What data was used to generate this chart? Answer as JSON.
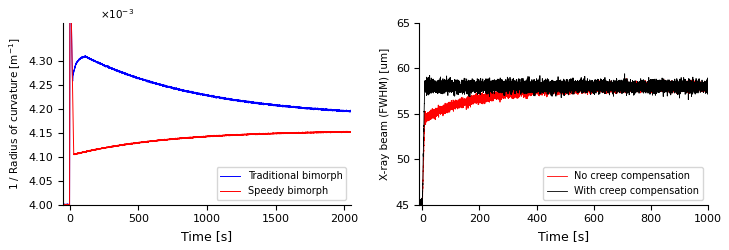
{
  "plot1": {
    "xlabel": "Time [s]",
    "ylabel": "1 / Radius of curvature [m$^{-1}$]",
    "xlim": [
      -50,
      2050
    ],
    "ylim": [
      0.004,
      0.00438
    ],
    "yticks": [
      0.004,
      0.00405,
      0.0041,
      0.00415,
      0.0042,
      0.00425,
      0.0043
    ],
    "xticks": [
      0,
      500,
      1000,
      1500,
      2000
    ],
    "legend": [
      "Traditional bimorph",
      "Speedy bimorph"
    ],
    "colors": [
      "blue",
      "red"
    ],
    "trad_noise": 7e-07,
    "speedy_noise": 4.5e-07
  },
  "plot2": {
    "xlabel": "Time [s]",
    "ylabel": "X-ray beam (FWHM) [um]",
    "xlim": [
      -10,
      1000
    ],
    "ylim": [
      45,
      65
    ],
    "yticks": [
      45,
      50,
      55,
      60,
      65
    ],
    "xticks": [
      0,
      200,
      400,
      600,
      800,
      1000
    ],
    "legend": [
      "No creep compensation",
      "With creep compensation"
    ],
    "colors": [
      "red",
      "black"
    ],
    "no_creep_noise": 0.25,
    "creep_noise": 0.35
  }
}
